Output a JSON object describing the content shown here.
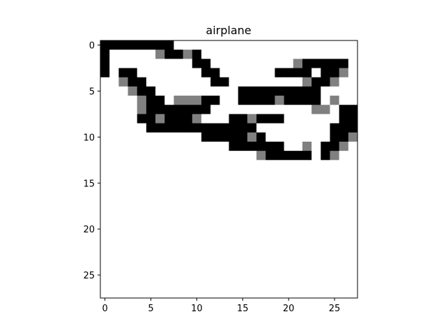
{
  "chart_data": {
    "type": "heatmap",
    "title": "airplane",
    "xlabel": "",
    "ylabel": "",
    "grid": false,
    "colormap": "gray_r",
    "value_range": [
      0,
      1
    ],
    "xlim": [
      -0.5,
      27.5
    ],
    "ylim": [
      27.5,
      -0.5
    ],
    "x_ticks": [
      0,
      5,
      10,
      15,
      20,
      25
    ],
    "y_ticks": [
      0,
      5,
      10,
      15,
      20,
      25
    ],
    "x_tick_labels": [
      "0",
      "5",
      "10",
      "15",
      "20",
      "25"
    ],
    "y_tick_labels": [
      "0",
      "5",
      "10",
      "15",
      "20",
      "25"
    ],
    "rows": 28,
    "cols": 28,
    "matrix": [
      [
        1,
        1,
        1,
        1,
        1,
        1,
        1,
        1,
        0,
        0,
        0,
        0,
        0,
        0,
        0,
        0,
        0,
        0,
        0,
        0,
        0,
        0,
        0,
        0,
        0,
        0,
        0,
        0
      ],
      [
        1,
        0,
        0,
        0,
        0,
        0,
        0.5,
        1,
        1,
        0.5,
        1,
        0,
        0,
        0,
        0,
        0,
        0,
        0,
        0,
        0,
        0,
        0,
        0,
        0,
        0,
        0,
        0,
        0
      ],
      [
        1,
        0,
        0,
        0,
        0,
        0,
        0,
        0,
        0,
        0,
        1,
        1,
        0,
        0,
        0,
        0,
        0,
        0,
        0,
        0,
        0,
        0.5,
        1,
        1,
        1,
        1,
        1,
        0
      ],
      [
        1,
        0,
        1,
        1,
        0,
        0,
        0,
        0,
        0,
        0,
        0,
        1,
        1,
        0,
        0,
        0,
        0,
        0,
        0,
        1,
        1,
        1,
        1,
        0,
        1,
        1,
        0.5,
        0
      ],
      [
        0,
        0,
        0.5,
        1,
        1,
        0,
        0,
        0,
        0,
        0,
        0,
        0,
        1,
        1,
        0,
        0,
        0,
        0,
        0,
        0,
        0,
        0,
        0.5,
        1,
        1,
        0.5,
        0,
        0
      ],
      [
        0,
        0,
        0,
        0.5,
        1,
        1,
        0,
        0,
        0,
        0,
        0,
        0,
        0,
        0,
        0,
        1,
        1,
        1,
        1,
        1,
        1,
        1,
        1,
        1,
        0,
        0,
        0,
        0
      ],
      [
        0,
        0,
        0,
        0,
        0.5,
        1,
        1,
        0,
        0.5,
        0.5,
        0.5,
        1,
        1,
        0,
        0,
        1,
        1,
        1,
        1,
        0.5,
        1,
        1,
        1,
        1,
        0,
        0.5,
        0,
        0
      ],
      [
        0,
        0,
        0,
        0,
        0.5,
        1,
        1,
        1,
        1,
        1,
        1,
        1,
        0,
        0,
        0,
        0,
        0,
        0,
        0,
        0,
        0,
        0,
        0,
        0.5,
        0.5,
        0,
        1,
        1
      ],
      [
        0,
        0,
        0,
        0,
        1,
        1,
        0.5,
        1,
        1,
        1,
        0.5,
        0,
        0,
        0,
        1,
        1,
        0.5,
        1,
        1,
        1,
        0,
        0,
        0,
        0,
        0,
        0,
        1,
        1
      ],
      [
        0,
        0,
        0,
        0,
        0,
        1,
        1,
        1,
        1,
        1,
        1,
        1,
        1,
        1,
        1,
        1,
        1,
        0,
        0,
        0,
        0,
        0,
        0,
        0,
        0,
        1,
        1,
        1
      ],
      [
        0,
        0,
        0,
        0,
        0,
        0,
        0,
        0,
        0,
        0,
        0,
        1,
        1,
        1,
        1,
        1,
        0.5,
        1,
        0,
        0,
        0,
        0,
        0,
        0,
        0,
        1,
        1,
        0.5
      ],
      [
        0,
        0,
        0,
        0,
        0,
        0,
        0,
        0,
        0,
        0,
        0,
        0,
        0,
        0,
        1,
        1,
        1,
        1,
        1,
        1,
        0,
        0,
        0.5,
        0,
        1,
        1,
        0.5,
        0
      ],
      [
        0,
        0,
        0,
        0,
        0,
        0,
        0,
        0,
        0,
        0,
        0,
        0,
        0,
        0,
        0,
        0,
        0,
        0.5,
        1,
        1,
        1,
        1,
        1,
        0,
        1,
        0.5,
        0,
        0
      ],
      [
        0,
        0,
        0,
        0,
        0,
        0,
        0,
        0,
        0,
        0,
        0,
        0,
        0,
        0,
        0,
        0,
        0,
        0,
        0,
        0,
        0,
        0,
        0,
        0,
        0,
        0,
        0,
        0
      ],
      [
        0,
        0,
        0,
        0,
        0,
        0,
        0,
        0,
        0,
        0,
        0,
        0,
        0,
        0,
        0,
        0,
        0,
        0,
        0,
        0,
        0,
        0,
        0,
        0,
        0,
        0,
        0,
        0
      ],
      [
        0,
        0,
        0,
        0,
        0,
        0,
        0,
        0,
        0,
        0,
        0,
        0,
        0,
        0,
        0,
        0,
        0,
        0,
        0,
        0,
        0,
        0,
        0,
        0,
        0,
        0,
        0,
        0
      ],
      [
        0,
        0,
        0,
        0,
        0,
        0,
        0,
        0,
        0,
        0,
        0,
        0,
        0,
        0,
        0,
        0,
        0,
        0,
        0,
        0,
        0,
        0,
        0,
        0,
        0,
        0,
        0,
        0
      ],
      [
        0,
        0,
        0,
        0,
        0,
        0,
        0,
        0,
        0,
        0,
        0,
        0,
        0,
        0,
        0,
        0,
        0,
        0,
        0,
        0,
        0,
        0,
        0,
        0,
        0,
        0,
        0,
        0
      ],
      [
        0,
        0,
        0,
        0,
        0,
        0,
        0,
        0,
        0,
        0,
        0,
        0,
        0,
        0,
        0,
        0,
        0,
        0,
        0,
        0,
        0,
        0,
        0,
        0,
        0,
        0,
        0,
        0
      ],
      [
        0,
        0,
        0,
        0,
        0,
        0,
        0,
        0,
        0,
        0,
        0,
        0,
        0,
        0,
        0,
        0,
        0,
        0,
        0,
        0,
        0,
        0,
        0,
        0,
        0,
        0,
        0,
        0
      ],
      [
        0,
        0,
        0,
        0,
        0,
        0,
        0,
        0,
        0,
        0,
        0,
        0,
        0,
        0,
        0,
        0,
        0,
        0,
        0,
        0,
        0,
        0,
        0,
        0,
        0,
        0,
        0,
        0
      ],
      [
        0,
        0,
        0,
        0,
        0,
        0,
        0,
        0,
        0,
        0,
        0,
        0,
        0,
        0,
        0,
        0,
        0,
        0,
        0,
        0,
        0,
        0,
        0,
        0,
        0,
        0,
        0,
        0
      ],
      [
        0,
        0,
        0,
        0,
        0,
        0,
        0,
        0,
        0,
        0,
        0,
        0,
        0,
        0,
        0,
        0,
        0,
        0,
        0,
        0,
        0,
        0,
        0,
        0,
        0,
        0,
        0,
        0
      ],
      [
        0,
        0,
        0,
        0,
        0,
        0,
        0,
        0,
        0,
        0,
        0,
        0,
        0,
        0,
        0,
        0,
        0,
        0,
        0,
        0,
        0,
        0,
        0,
        0,
        0,
        0,
        0,
        0
      ],
      [
        0,
        0,
        0,
        0,
        0,
        0,
        0,
        0,
        0,
        0,
        0,
        0,
        0,
        0,
        0,
        0,
        0,
        0,
        0,
        0,
        0,
        0,
        0,
        0,
        0,
        0,
        0,
        0
      ],
      [
        0,
        0,
        0,
        0,
        0,
        0,
        0,
        0,
        0,
        0,
        0,
        0,
        0,
        0,
        0,
        0,
        0,
        0,
        0,
        0,
        0,
        0,
        0,
        0,
        0,
        0,
        0,
        0
      ],
      [
        0,
        0,
        0,
        0,
        0,
        0,
        0,
        0,
        0,
        0,
        0,
        0,
        0,
        0,
        0,
        0,
        0,
        0,
        0,
        0,
        0,
        0,
        0,
        0,
        0,
        0,
        0,
        0
      ],
      [
        0,
        0,
        0,
        0,
        0,
        0,
        0,
        0,
        0,
        0,
        0,
        0,
        0,
        0,
        0,
        0,
        0,
        0,
        0,
        0,
        0,
        0,
        0,
        0,
        0,
        0,
        0,
        0
      ]
    ]
  }
}
